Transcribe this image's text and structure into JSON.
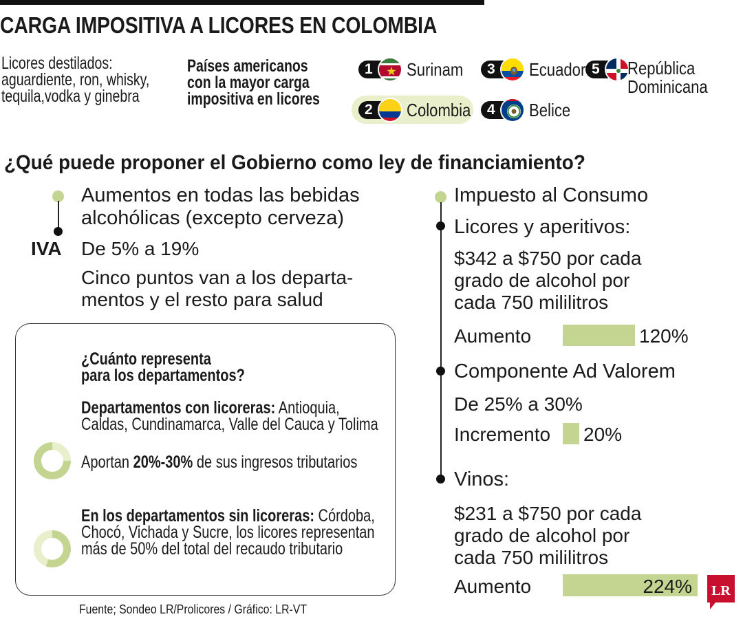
{
  "title": "CARGA IMPOSITIVA A LICORES EN COLOMBIA",
  "destilados": [
    "Licores destilados:",
    "aguardiente, ron, whisky,",
    "tequila,vodka y ginebra"
  ],
  "ranking_heading": [
    "Países americanos",
    "con la mayor carga",
    "impositiva en licores"
  ],
  "countries": [
    {
      "rank": "1",
      "name": "Surinam",
      "flag_icon": "suriname-flag-icon"
    },
    {
      "rank": "2",
      "name": "Colombia",
      "flag_icon": "colombia-flag-icon",
      "highlight": "#e9efcb"
    },
    {
      "rank": "3",
      "name": "Ecuador",
      "flag_icon": "ecuador-flag-icon"
    },
    {
      "rank": "4",
      "name": "Belice",
      "flag_icon": "belize-flag-icon"
    },
    {
      "rank": "5",
      "name": "República Dominicana",
      "name_lines": [
        "República",
        "Dominicana"
      ],
      "flag_icon": "dominican-republic-flag-icon"
    }
  ],
  "question": "¿Qué puede proponer el Gobierno como ley de financiamiento?",
  "left": {
    "heading": [
      "Aumentos en todas las bebidas",
      "alcohólicas (excepto cerveza)"
    ],
    "iva_label": "IVA",
    "iva_change": "De 5% a 19%",
    "iva_note": [
      "Cinco puntos van a los departa-",
      "mentos y el resto para salud"
    ]
  },
  "box": {
    "heading": [
      "¿Cuánto representa",
      "para los departamentos?"
    ],
    "with_factories_label": "Departamentos con licoreras:",
    "with_factories_list": [
      " Antioquia,",
      "Caldas, Cundinamarca, Valle del Cauca y Tolima"
    ],
    "contribution_prefix": "Aportan ",
    "contribution_value": "20%-30%",
    "contribution_suffix": " de sus ingresos tributarios",
    "without_factories_label": "En los departamentos sin licoreras:",
    "without_factories_text": [
      " Córdoba,",
      "Chocó, Vichada y Sucre, los licores representan",
      "más de 50% del total del recaudo tributario"
    ]
  },
  "right": {
    "heading": "Impuesto al Consumo",
    "licores_label": "Licores y aperitivos:",
    "licores_text": [
      "$342 a $750 por cada",
      "grado de alcohol por",
      "cada 750 mililitros"
    ],
    "licores_bar_label": "Aumento",
    "licores_bar_value": "120%",
    "advalorem_label": "Componente Ad Valorem",
    "advalorem_text": "De 25% a 30%",
    "advalorem_bar_label": "Incremento",
    "advalorem_bar_value": "20%",
    "vinos_label": "Vinos:",
    "vinos_text": [
      "$231 a $750 por cada",
      "grado de alcohol por",
      "cada 750 mililitros"
    ],
    "vinos_bar_label": "Aumento",
    "vinos_bar_value": "224%"
  },
  "chart_data": {
    "type": "bar",
    "categories": [
      "Licores y aperitivos: Aumento",
      "Componente Ad Valorem: Incremento",
      "Vinos: Aumento"
    ],
    "values": [
      120,
      20,
      224
    ],
    "title": "",
    "xlabel": "",
    "ylabel": ""
  },
  "colors": {
    "accent_green": "#c3d590",
    "highlight": "#e9efcb",
    "logo_red": "#c8102e"
  },
  "source": "Fuente; Sondeo LR/Prolicores / Gráfico: LR-VT",
  "logo_text": "LR"
}
